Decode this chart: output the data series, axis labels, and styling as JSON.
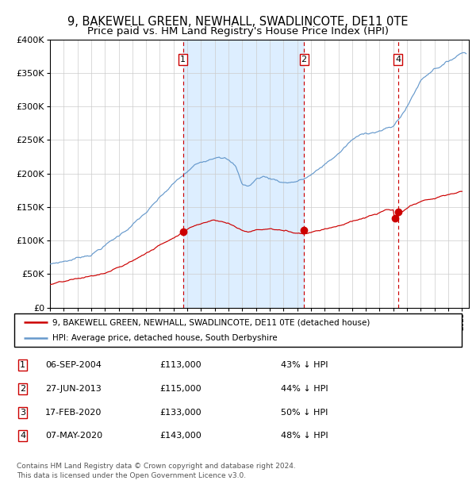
{
  "title": "9, BAKEWELL GREEN, NEWHALL, SWADLINCOTE, DE11 0TE",
  "subtitle": "Price paid vs. HM Land Registry's House Price Index (HPI)",
  "legend_line1": "9, BAKEWELL GREEN, NEWHALL, SWADLINCOTE, DE11 0TE (detached house)",
  "legend_line2": "HPI: Average price, detached house, South Derbyshire",
  "footnote1": "Contains HM Land Registry data © Crown copyright and database right 2024.",
  "footnote2": "This data is licensed under the Open Government Licence v3.0.",
  "table_entries": [
    {
      "num": 1,
      "date": "06-SEP-2004",
      "price": "£113,000",
      "pct": "43% ↓ HPI"
    },
    {
      "num": 2,
      "date": "27-JUN-2013",
      "price": "£115,000",
      "pct": "44% ↓ HPI"
    },
    {
      "num": 3,
      "date": "17-FEB-2020",
      "price": "£133,000",
      "pct": "50% ↓ HPI"
    },
    {
      "num": 4,
      "date": "07-MAY-2020",
      "price": "£143,000",
      "pct": "48% ↓ HPI"
    }
  ],
  "sale_dates_decimal": [
    2004.68,
    2013.49,
    2020.12,
    2020.35
  ],
  "sale_prices": [
    113000,
    115000,
    133000,
    143000
  ],
  "vline_dates_decimal": [
    2004.68,
    2013.49,
    2020.35
  ],
  "vline_labels": [
    1,
    2,
    4
  ],
  "shade_regions": [
    [
      2004.68,
      2013.49
    ]
  ],
  "ylim": [
    0,
    400000
  ],
  "xlim_start": 1995.0,
  "xlim_end": 2025.5,
  "red_color": "#cc0000",
  "blue_color": "#6699cc",
  "shade_color": "#ddeeff",
  "grid_color": "#cccccc",
  "bg_color": "#ffffff",
  "title_fontsize": 10.5,
  "subtitle_fontsize": 9.5
}
